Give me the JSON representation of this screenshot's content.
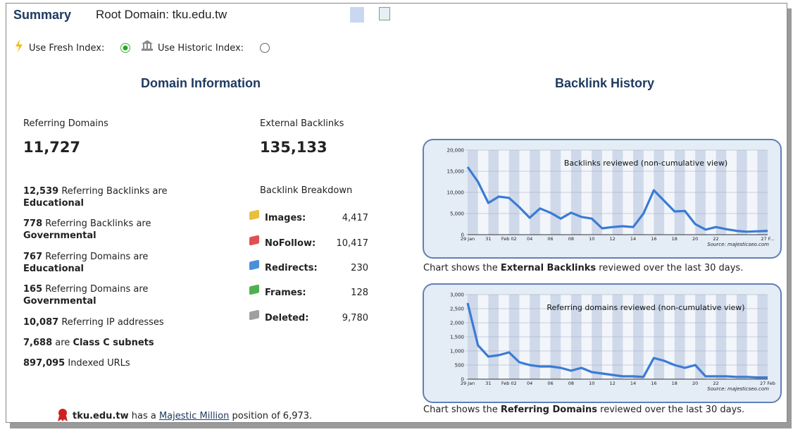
{
  "header": {
    "title": "Summary",
    "root_domain": "Root Domain: tku.edu.tw"
  },
  "index_options": {
    "fresh": "Use Fresh Index:",
    "historic": "Use Historic Index:"
  },
  "domain_info": {
    "heading": "Domain Information",
    "stats": [
      {
        "label": "Referring Domains",
        "value": "11,727"
      },
      {
        "label": "External Backlinks",
        "value": "135,133"
      }
    ],
    "facts": [
      {
        "number": "12,539",
        "text": "Referring Backlinks are",
        "bold_text": "Educational"
      },
      {
        "number": "778",
        "text": "Referring Backlinks are",
        "bold_text": "Governmental"
      },
      {
        "number": "767",
        "text": "Referring Domains are",
        "bold_text": "Educational"
      },
      {
        "number": "165",
        "text": "Referring Domains are",
        "bold_text": "Governmental"
      },
      {
        "number": "10,087",
        "text": "Referring IP addresses"
      },
      {
        "number": "7,688",
        "text": "are",
        "bold_text": "Class C subnets"
      },
      {
        "number": "897,095",
        "text": "Indexed URLs"
      }
    ],
    "breakdown": {
      "title": "Backlink Breakdown",
      "rows": [
        {
          "label": "Images:",
          "value": "4,417",
          "color": "#e8c040"
        },
        {
          "label": "NoFollow:",
          "value": "10,417",
          "color": "#e05050"
        },
        {
          "label": "Redirects:",
          "value": "230",
          "color": "#4a90d8"
        },
        {
          "label": "Frames:",
          "value": "128",
          "color": "#50b050"
        },
        {
          "label": "Deleted:",
          "value": "9,780",
          "color": "#a0a0a0"
        }
      ]
    }
  },
  "footer": {
    "domain": "tku.edu.tw",
    "text_before": "has a",
    "link": "Majestic Million",
    "text_after": "position of 6,973."
  },
  "history": {
    "heading": "Backlink History",
    "captions": [
      {
        "before": "Chart shows the",
        "bold": "External Backlinks",
        "after": "reviewed over the last 30 days."
      },
      {
        "before": "Chart shows the",
        "bold": "Referring Domains",
        "after": "reviewed over the last 30 days."
      }
    ]
  },
  "chart_data": [
    {
      "type": "line",
      "title": "Backlinks reviewed (non-cumulative view)",
      "source": "Source: majesticseo.com",
      "color": "#3a7bd5",
      "categories": [
        "29 Jan",
        null,
        "31",
        null,
        "Feb 02",
        null,
        "04",
        null,
        "06",
        null,
        "08",
        null,
        "10",
        null,
        "12",
        null,
        "14",
        null,
        "16",
        null,
        "18",
        null,
        "20",
        null,
        "22",
        null,
        null,
        null,
        null,
        "27 F..."
      ],
      "values": [
        16000,
        12500,
        7500,
        9000,
        8700,
        6500,
        4000,
        6200,
        5200,
        3800,
        5200,
        4200,
        3800,
        1500,
        1800,
        2000,
        1800,
        5000,
        10500,
        8000,
        5500,
        5600,
        2500,
        1200,
        1800,
        1300,
        900,
        700,
        800,
        900
      ],
      "ylim": [
        0,
        20000
      ],
      "yticks": [
        0,
        {
          "value": 5000,
          "label": "5,000"
        },
        {
          "value": 10000,
          "label": "10,000"
        },
        {
          "value": 15000,
          "label": "15,000"
        },
        {
          "value": 20000,
          "label": "20,000"
        }
      ]
    },
    {
      "type": "line",
      "title": "Referring domains reviewed (non-cumulative view)",
      "source": "Source: majesticseo.com",
      "color": "#3a7bd5",
      "categories": [
        "29 Jan",
        null,
        "31",
        null,
        "Feb 02",
        null,
        "04",
        null,
        "06",
        null,
        "08",
        null,
        "10",
        null,
        "12",
        null,
        "14",
        null,
        "16",
        null,
        "18",
        null,
        "20",
        null,
        "22",
        null,
        null,
        null,
        null,
        "27 Feb"
      ],
      "values": [
        2700,
        1200,
        800,
        850,
        950,
        600,
        500,
        450,
        450,
        400,
        300,
        400,
        250,
        200,
        150,
        100,
        100,
        80,
        750,
        650,
        500,
        400,
        500,
        100,
        100,
        100,
        80,
        80,
        60,
        60
      ],
      "ylim": [
        0,
        3000
      ],
      "yticks": [
        0,
        500,
        {
          "value": 1000,
          "label": "1,000"
        },
        {
          "value": 1500,
          "label": "1,500"
        },
        {
          "value": 2000,
          "label": "2,000"
        },
        {
          "value": 2500,
          "label": "2,500"
        },
        {
          "value": 3000,
          "label": "3,000"
        }
      ]
    }
  ]
}
